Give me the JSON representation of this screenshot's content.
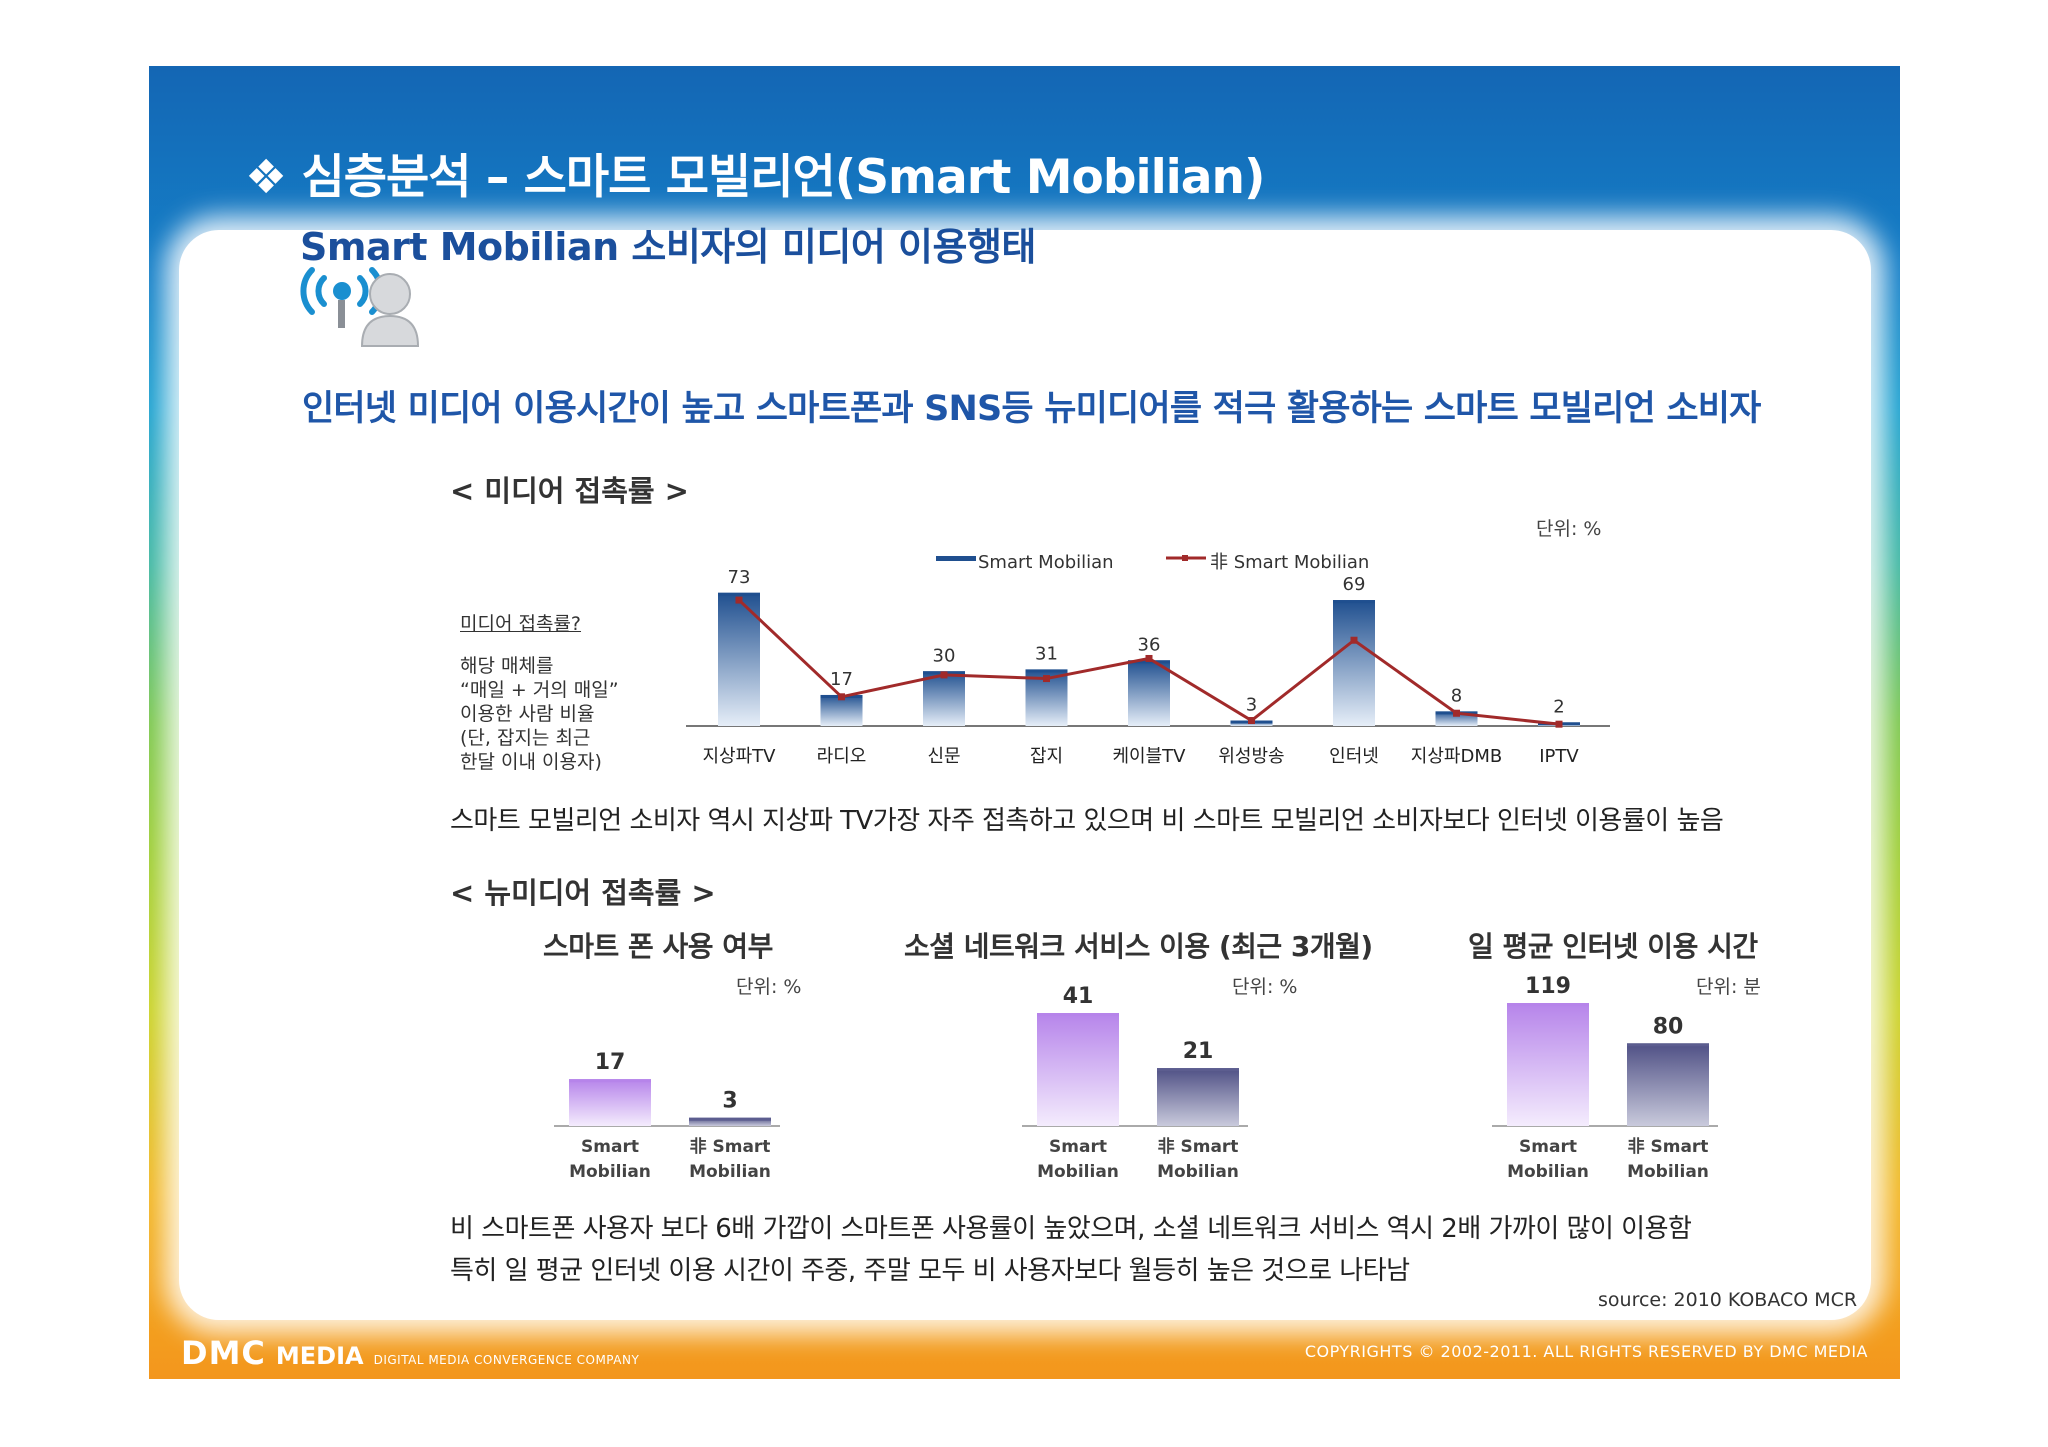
{
  "slide": {
    "title": "❖ 심층분석 – 스마트 모빌리언(Smart Mobilian)",
    "subtitle": "Smart Mobilian 소비자의 미디어 이용행태",
    "headline": "인터넷 미디어 이용시간이 높고 스마트폰과 SNS등 뉴미디어를 적극 활용하는 스마트 모빌리언 소비자",
    "source": "source: 2010 KOBACO MCR",
    "footer_logo": "DMC",
    "footer_media": "MEDIA",
    "footer_tag": "DIGITAL MEDIA CONVERGENCE COMPANY",
    "copyright": "COPYRIGHTS © 2002-2011. ALL RIGHTS RESERVED BY DMC MEDIA"
  },
  "section1": {
    "title": "< 미디어 접촉률 >",
    "unit": "단위: %",
    "side_question": "미디어 접촉률?",
    "side_lines": [
      "해당 매체를",
      "“매일 + 거의 매일”",
      "이용한 사람 비율",
      "(단, 잡지는 최근",
      " 한달 이내 이용자)"
    ],
    "note": "스마트 모빌리언 소비자 역시 지상파 TV가장 자주 접촉하고 있으며 비 스마트 모빌리언 소비자보다 인터넷 이용률이 높음"
  },
  "section2": {
    "title": "< 뉴미디어 접촉률 >",
    "note1": "비 스마트폰 사용자 보다 6배 가깝이 스마트폰 사용률이 높았으며, 소셜 네트워크 서비스 역시 2배 가까이 많이 이용함",
    "note2": "특히 일 평균 인터넷 이용 시간이 주중, 주말 모두 비 사용자보다 월등히 높은 것으로 나타남"
  },
  "chart_data": [
    {
      "type": "bar",
      "title": "",
      "categories": [
        "지상파TV",
        "라디오",
        "신문",
        "잡지",
        "케이블TV",
        "위성방송",
        "인터넷",
        "지상파DMB",
        "IPTV"
      ],
      "series": [
        {
          "name": "Smart Mobilian",
          "type": "bar",
          "values": [
            73,
            17,
            30,
            31,
            36,
            3,
            69,
            8,
            2
          ]
        },
        {
          "name": "非 Smart Mobilian",
          "type": "line",
          "values": [
            69,
            16,
            28,
            26,
            37,
            3,
            47,
            7,
            1
          ]
        }
      ],
      "unit": "단위: %",
      "ylim": [
        0,
        80
      ],
      "colors": {
        "bar": "#1f4f8f",
        "line": "#a12a2a"
      }
    },
    {
      "type": "bar",
      "title": "스마트 폰 사용 여부",
      "unit": "단위: %",
      "categories": [
        "Smart\nMobilian",
        "非 Smart\nMobilian"
      ],
      "values": [
        17,
        3
      ],
      "ylim": [
        0,
        45
      ],
      "colors": [
        "#b684ea",
        "#5c5d8f"
      ]
    },
    {
      "type": "bar",
      "title": "소셜 네트워크 서비스 이용 (최근 3개월)",
      "unit": "단위: %",
      "categories": [
        "Smart\nMobilian",
        "非 Smart\nMobilian"
      ],
      "values": [
        41,
        21
      ],
      "ylim": [
        0,
        45
      ],
      "colors": [
        "#b684ea",
        "#5c5d8f"
      ]
    },
    {
      "type": "bar",
      "title": "일 평균 인터넷 이용 시간",
      "unit": "단위: 분",
      "categories": [
        "Smart\nMobilian",
        "非 Smart\nMobilian"
      ],
      "values": [
        119,
        80
      ],
      "ylim": [
        0,
        120
      ],
      "colors": [
        "#b684ea",
        "#5c5d8f"
      ]
    }
  ]
}
